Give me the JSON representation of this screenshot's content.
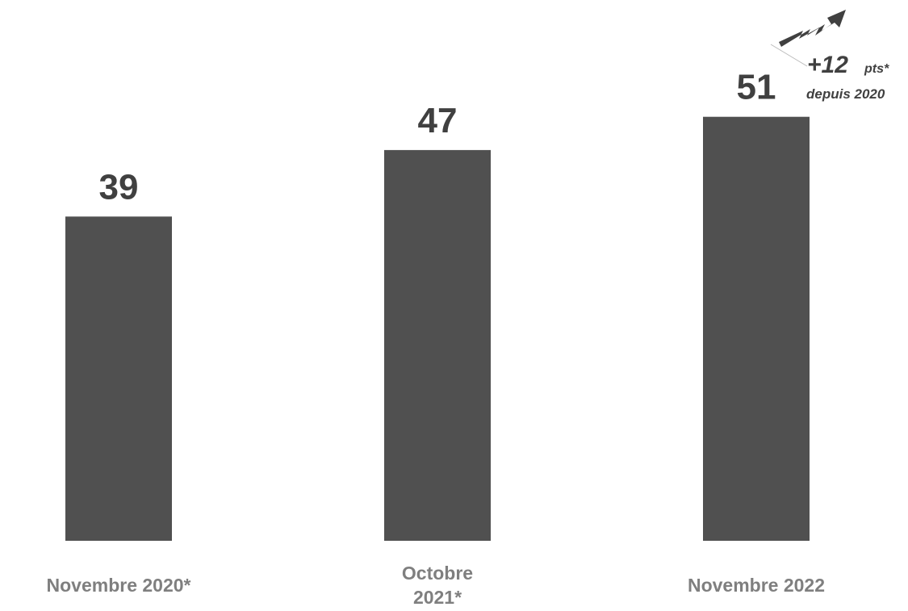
{
  "chart_data": {
    "type": "bar",
    "categories": [
      "Novembre 2020*",
      "Octobre 2021*",
      "Novembre 2022"
    ],
    "values": [
      39,
      47,
      51
    ],
    "color": "#505050",
    "annotation": {
      "change": "+12",
      "unit": "pts*",
      "since": "depuis 2020"
    }
  }
}
